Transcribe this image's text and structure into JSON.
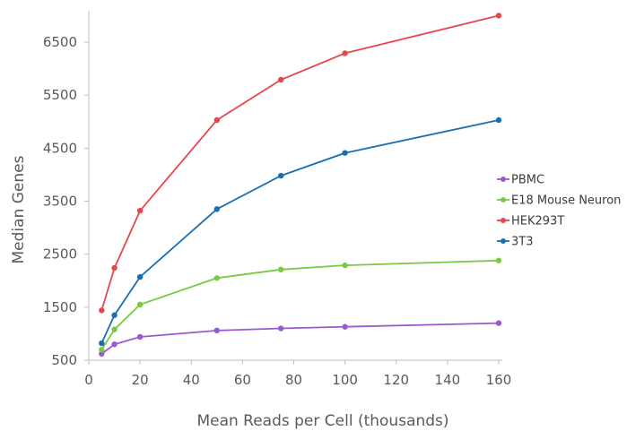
{
  "chart_data": {
    "type": "line",
    "title": "",
    "xlabel": "Mean Reads per Cell (thousands)",
    "ylabel": "Median Genes",
    "xlim": [
      0,
      160
    ],
    "ylim": [
      500,
      7000
    ],
    "xticks": [
      0,
      20,
      40,
      60,
      80,
      100,
      120,
      140,
      160
    ],
    "yticks": [
      500,
      1500,
      2500,
      3500,
      4500,
      5500,
      6500
    ],
    "grid": false,
    "legend_position": "right",
    "series": [
      {
        "name": "PBMC",
        "color": "#9b59d0",
        "points": [
          [
            5,
            620
          ],
          [
            10,
            800
          ],
          [
            20,
            940
          ],
          [
            50,
            1060
          ],
          [
            75,
            1100
          ],
          [
            100,
            1130
          ],
          [
            160,
            1200
          ]
        ]
      },
      {
        "name": "E18 Mouse Neuron",
        "color": "#7ac943",
        "points": [
          [
            5,
            700
          ],
          [
            10,
            1080
          ],
          [
            20,
            1550
          ],
          [
            50,
            2050
          ],
          [
            75,
            2210
          ],
          [
            100,
            2290
          ],
          [
            160,
            2380
          ]
        ]
      },
      {
        "name": "HEK293T",
        "color": "#e8454c",
        "points": [
          [
            5,
            1440
          ],
          [
            10,
            2240
          ],
          [
            20,
            3320
          ],
          [
            50,
            5030
          ],
          [
            75,
            5790
          ],
          [
            100,
            6290
          ],
          [
            160,
            7000
          ]
        ]
      },
      {
        "name": "3T3",
        "color": "#1a6fb3",
        "points": [
          [
            5,
            820
          ],
          [
            10,
            1350
          ],
          [
            20,
            2070
          ],
          [
            50,
            3350
          ],
          [
            75,
            3980
          ],
          [
            100,
            4410
          ],
          [
            160,
            5030
          ]
        ]
      }
    ]
  }
}
